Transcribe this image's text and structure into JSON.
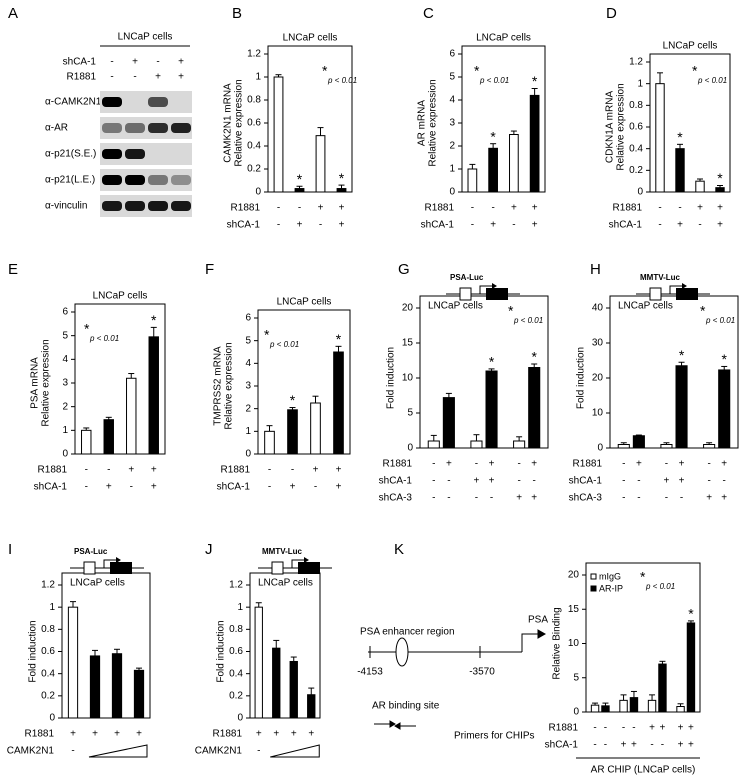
{
  "blot": {
    "panel": "A",
    "title": "LNCaP cells",
    "conditions": [
      {
        "name": "shCA-1",
        "signs": [
          "-",
          "+",
          "-",
          "+"
        ]
      },
      {
        "name": "R1881",
        "signs": [
          "-",
          "-",
          "+",
          "+"
        ]
      }
    ],
    "antibodies": [
      "α-CAMK2N1",
      "α-AR",
      "α-p21(S.E.)",
      "α-p21(L.E.)",
      "α-vinculin"
    ]
  },
  "diagram": {
    "panel": "K",
    "region_label": "PSA enhancer region",
    "start": "-4153",
    "end": "-3570",
    "gene": "PSA",
    "site_label": "AR binding site",
    "primer_label": "Primers for CHIPs"
  },
  "chart_data": [
    {
      "type": "bar",
      "panel": "B",
      "title": "LNCaP cells",
      "ylabel": [
        "CAMK2N1 mRNA",
        "Relative expression"
      ],
      "values": [
        1.0,
        0.03,
        0.49,
        0.03
      ],
      "errors": [
        0.02,
        0.02,
        0.07,
        0.03
      ],
      "colors": [
        "#ffffff",
        "#000000",
        "#ffffff",
        "#000000"
      ],
      "stars": [
        null,
        "*",
        null,
        "*"
      ],
      "note_mark": "*",
      "note": "p < 0.01",
      "ylim": [
        0,
        1.2
      ],
      "yticks": [
        0,
        0.2,
        0.4,
        0.6,
        0.8,
        1,
        1.2
      ],
      "conditions": [
        {
          "name": "R1881",
          "signs": [
            "-",
            "-",
            "+",
            "+"
          ]
        },
        {
          "name": "shCA-1",
          "signs": [
            "-",
            "+",
            "-",
            "+"
          ]
        }
      ]
    },
    {
      "type": "bar",
      "panel": "C",
      "title": "LNCaP cells",
      "ylabel": [
        "AR mRNA",
        "Relative expression"
      ],
      "values": [
        1.0,
        1.9,
        2.5,
        4.2
      ],
      "errors": [
        0.2,
        0.2,
        0.15,
        0.3
      ],
      "colors": [
        "#ffffff",
        "#000000",
        "#ffffff",
        "#000000"
      ],
      "stars": [
        null,
        "*",
        null,
        "*"
      ],
      "note_mark": "*",
      "note": "p < 0.01",
      "ylim": [
        0,
        6
      ],
      "yticks": [
        0,
        1,
        2,
        3,
        4,
        5,
        6
      ],
      "conditions": [
        {
          "name": "R1881",
          "signs": [
            "-",
            "-",
            "+",
            "+"
          ]
        },
        {
          "name": "shCA-1",
          "signs": [
            "-",
            "+",
            "-",
            "+"
          ]
        }
      ]
    },
    {
      "type": "bar",
      "panel": "D",
      "title": "LNCaP cells",
      "ylabel": [
        "CDKN1A mRNA",
        "Relative expression"
      ],
      "values": [
        1.0,
        0.4,
        0.1,
        0.04
      ],
      "errors": [
        0.1,
        0.04,
        0.02,
        0.02
      ],
      "colors": [
        "#ffffff",
        "#000000",
        "#ffffff",
        "#000000"
      ],
      "stars": [
        null,
        "*",
        null,
        "*"
      ],
      "note_mark": "*",
      "note": "p < 0.01",
      "ylim": [
        0,
        1.2
      ],
      "yticks": [
        0,
        0.2,
        0.4,
        0.6,
        0.8,
        1,
        1.2
      ],
      "conditions": [
        {
          "name": "R1881",
          "signs": [
            "-",
            "-",
            "+",
            "+"
          ]
        },
        {
          "name": "shCA-1",
          "signs": [
            "-",
            "+",
            "-",
            "+"
          ]
        }
      ]
    },
    {
      "type": "bar",
      "panel": "E",
      "title": "LNCaP cells",
      "ylabel": [
        "PSA mRNA",
        "Relative expression"
      ],
      "values": [
        1.0,
        1.45,
        3.2,
        4.95
      ],
      "errors": [
        0.1,
        0.1,
        0.2,
        0.4
      ],
      "colors": [
        "#ffffff",
        "#000000",
        "#ffffff",
        "#000000"
      ],
      "stars": [
        null,
        null,
        null,
        "*"
      ],
      "note_mark": "*",
      "note": "p < 0.01",
      "ylim": [
        0,
        6
      ],
      "yticks": [
        0,
        1,
        2,
        3,
        4,
        5,
        6
      ],
      "conditions": [
        {
          "name": "R1881",
          "signs": [
            "-",
            "-",
            "+",
            "+"
          ]
        },
        {
          "name": "shCA-1",
          "signs": [
            "-",
            "+",
            "-",
            "+"
          ]
        }
      ]
    },
    {
      "type": "bar",
      "panel": "F",
      "title": "LNCaP cells",
      "ylabel": [
        "TMPRSS2 mRNA",
        "Relative expression"
      ],
      "values": [
        1.0,
        1.95,
        2.25,
        4.5
      ],
      "errors": [
        0.25,
        0.1,
        0.3,
        0.25
      ],
      "colors": [
        "#ffffff",
        "#000000",
        "#ffffff",
        "#000000"
      ],
      "stars": [
        null,
        "*",
        null,
        "*"
      ],
      "note_mark": "*",
      "note": "p < 0.01",
      "ylim": [
        0,
        6
      ],
      "yticks": [
        0,
        1,
        2,
        3,
        4,
        5,
        6
      ],
      "conditions": [
        {
          "name": "R1881",
          "signs": [
            "-",
            "-",
            "+",
            "+"
          ]
        },
        {
          "name": "shCA-1",
          "signs": [
            "-",
            "+",
            "-",
            "+"
          ]
        }
      ]
    },
    {
      "type": "bar",
      "panel": "G",
      "title": "LNCaP cells",
      "construct": "PSA-Luc",
      "ylabel": [
        "Fold induction"
      ],
      "values": [
        1.0,
        7.2,
        1.0,
        11,
        1.0,
        11.5
      ],
      "errors": [
        0.8,
        0.6,
        0.9,
        0.3,
        0.6,
        0.5
      ],
      "colors": [
        "#ffffff",
        "#000000",
        "#ffffff",
        "#000000",
        "#ffffff",
        "#000000"
      ],
      "stars": [
        null,
        null,
        null,
        "*",
        null,
        "*"
      ],
      "note_mark": "*",
      "note": "p < 0.01",
      "ylim": [
        0,
        20
      ],
      "yticks": [
        0,
        5,
        10,
        15,
        20
      ],
      "conditions": [
        {
          "name": "R1881",
          "signs": [
            "-",
            "+",
            "-",
            "+",
            "-",
            "+"
          ]
        },
        {
          "name": "shCA-1",
          "signs": [
            "-",
            "-",
            "+",
            "+",
            "-",
            "-"
          ]
        },
        {
          "name": "shCA-3",
          "signs": [
            "-",
            "-",
            "-",
            "-",
            "+",
            "+"
          ]
        }
      ]
    },
    {
      "type": "bar",
      "panel": "H",
      "title": "LNCaP cells",
      "construct": "MMTV-Luc",
      "ylabel": [
        "Fold induction"
      ],
      "values": [
        1.0,
        3.5,
        1.0,
        23.5,
        1.0,
        22.3
      ],
      "errors": [
        0.5,
        0.2,
        0.5,
        1.0,
        0.5,
        1.0
      ],
      "colors": [
        "#ffffff",
        "#000000",
        "#ffffff",
        "#000000",
        "#ffffff",
        "#000000"
      ],
      "stars": [
        null,
        null,
        null,
        "*",
        null,
        "*"
      ],
      "note_mark": "*",
      "note": "p < 0.01",
      "ylim": [
        0,
        40
      ],
      "yticks": [
        0,
        10,
        20,
        30,
        40
      ],
      "conditions": [
        {
          "name": "R1881",
          "signs": [
            "-",
            "+",
            "-",
            "+",
            "-",
            "+"
          ]
        },
        {
          "name": "shCA-1",
          "signs": [
            "-",
            "-",
            "+",
            "+",
            "-",
            "-"
          ]
        },
        {
          "name": "shCA-3",
          "signs": [
            "-",
            "-",
            "-",
            "-",
            "+",
            "+"
          ]
        }
      ]
    },
    {
      "type": "bar",
      "panel": "I",
      "title": "LNCaP cells",
      "construct": "PSA-Luc",
      "ylabel": [
        "Fold induction"
      ],
      "values": [
        1.0,
        0.56,
        0.58,
        0.43
      ],
      "errors": [
        0.05,
        0.05,
        0.04,
        0.02
      ],
      "colors": [
        "#ffffff",
        "#000000",
        "#000000",
        "#000000"
      ],
      "ylim": [
        0,
        1.2
      ],
      "yticks": [
        0,
        0.2,
        0.4,
        0.6,
        0.8,
        1,
        1.2
      ],
      "conditions": [
        {
          "name": "R1881",
          "signs": [
            "+",
            "+",
            "+",
            "+"
          ]
        },
        {
          "name": "CAMK2N1",
          "signs": [
            "-",
            null,
            null,
            null
          ]
        }
      ]
    },
    {
      "type": "bar",
      "panel": "J",
      "title": "LNCaP cells",
      "construct": "MMTV-Luc",
      "ylabel": [
        "Fold induction"
      ],
      "values": [
        1.0,
        0.63,
        0.51,
        0.21
      ],
      "errors": [
        0.04,
        0.07,
        0.04,
        0.06
      ],
      "colors": [
        "#ffffff",
        "#000000",
        "#000000",
        "#000000"
      ],
      "ylim": [
        0,
        1.2
      ],
      "yticks": [
        0,
        0.2,
        0.4,
        0.6,
        0.8,
        1,
        1.2
      ],
      "conditions": [
        {
          "name": "R1881",
          "signs": [
            "+",
            "+",
            "+",
            "+"
          ]
        },
        {
          "name": "CAMK2N1",
          "signs": [
            "-",
            null,
            null,
            null
          ]
        }
      ]
    },
    {
      "type": "bar",
      "ylabel": [
        "Relative Binding"
      ],
      "xlabel": "AR CHIP (LNCaP cells)",
      "series": [
        {
          "name": "mIgG",
          "color": "#ffffff",
          "values": [
            1.0,
            1.7,
            1.7,
            0.8
          ],
          "errors": [
            0.3,
            0.8,
            0.8,
            0.4
          ]
        },
        {
          "name": "AR-IP",
          "color": "#000000",
          "values": [
            0.9,
            2.1,
            7.0,
            13.0
          ],
          "errors": [
            0.4,
            0.9,
            0.4,
            0.3
          ],
          "stars": [
            null,
            null,
            null,
            "*"
          ]
        }
      ],
      "note_mark": "*",
      "note": "p < 0.01",
      "ylim": [
        0,
        20
      ],
      "yticks": [
        0,
        5,
        10,
        15,
        20
      ],
      "conditions": [
        {
          "name": "R1881",
          "signs": [
            "-",
            "-",
            "-",
            "-",
            "+",
            "+",
            "+",
            "+"
          ]
        },
        {
          "name": "shCA-1",
          "signs": [
            "-",
            "-",
            "+",
            "+",
            "-",
            "-",
            "+",
            "+"
          ]
        }
      ]
    }
  ]
}
